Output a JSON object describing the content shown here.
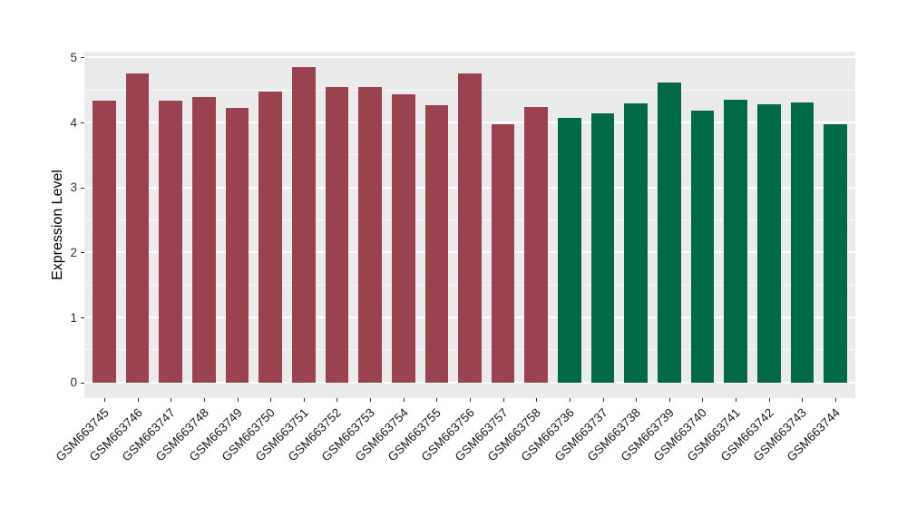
{
  "figure": {
    "background": "#FFFFFF",
    "panel_background": "#EBEBEB",
    "grid_color": "#FFFFFF",
    "axis_text_color": "#333333",
    "axis_title_color": "#000000"
  },
  "chart_data": {
    "type": "bar",
    "title": "",
    "xlabel": "",
    "ylabel": "Expression Level",
    "ylim": [
      -0.24,
      5.09
    ],
    "yticks": [
      0,
      1,
      2,
      3,
      4,
      5
    ],
    "yticks_minor": [
      0.5,
      1.5,
      2.5,
      3.5,
      4.5
    ],
    "grid": "major+minor horizontal, white on gray panel",
    "legend_position": "none",
    "bar_rel_width": 0.7,
    "series": [
      {
        "color": "#9B4250",
        "categories": [
          "GSM663745",
          "GSM663746",
          "GSM663747",
          "GSM663748",
          "GSM663749",
          "GSM663750",
          "GSM663751",
          "GSM663752",
          "GSM663753",
          "GSM663754",
          "GSM663755",
          "GSM663756",
          "GSM663757",
          "GSM663758"
        ],
        "values": [
          4.33,
          4.76,
          4.33,
          4.39,
          4.23,
          4.47,
          4.85,
          4.55,
          4.54,
          4.43,
          4.26,
          4.76,
          3.97,
          4.24
        ]
      },
      {
        "color": "#006A46",
        "categories": [
          "GSM663736",
          "GSM663737",
          "GSM663738",
          "GSM663739",
          "GSM663740",
          "GSM663741",
          "GSM663742",
          "GSM663743",
          "GSM663744"
        ],
        "values": [
          4.07,
          4.14,
          4.3,
          4.61,
          4.18,
          4.35,
          4.28,
          4.31,
          3.98
        ]
      }
    ]
  }
}
